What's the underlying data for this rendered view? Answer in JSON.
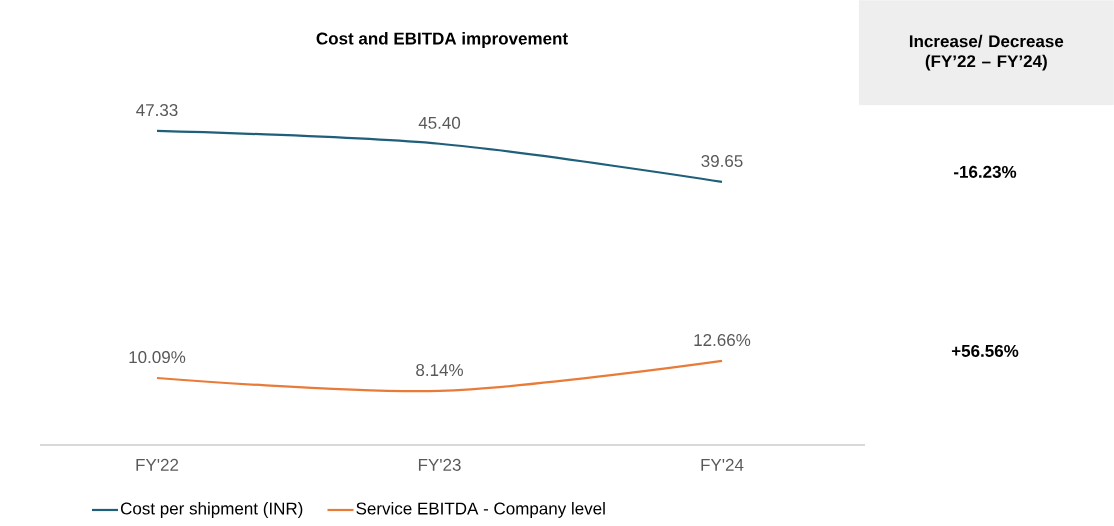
{
  "chart_data": {
    "type": "line",
    "title": "Cost and EBITDA improvement",
    "categories": [
      "FY'22",
      "FY'23",
      "FY'24"
    ],
    "series": [
      {
        "name": "Cost per shipment (INR)",
        "color": "#1f5f7a",
        "values": [
          47.33,
          45.4,
          39.65
        ],
        "value_labels": [
          "47.33",
          "45.40",
          "39.65"
        ]
      },
      {
        "name": "Service EBITDA - Company level",
        "color": "#e97b39",
        "values": [
          10.09,
          8.14,
          12.66
        ],
        "value_labels": [
          "10.09%",
          "8.14%",
          "12.66%"
        ]
      }
    ],
    "tick_labels": "x",
    "legend": "bottom",
    "marker": "none",
    "line_style": "solid",
    "annotations": [
      "Increase/ Decrease (FY’22 – FY’24)",
      "-16.23%",
      "+56.56%"
    ]
  }
}
